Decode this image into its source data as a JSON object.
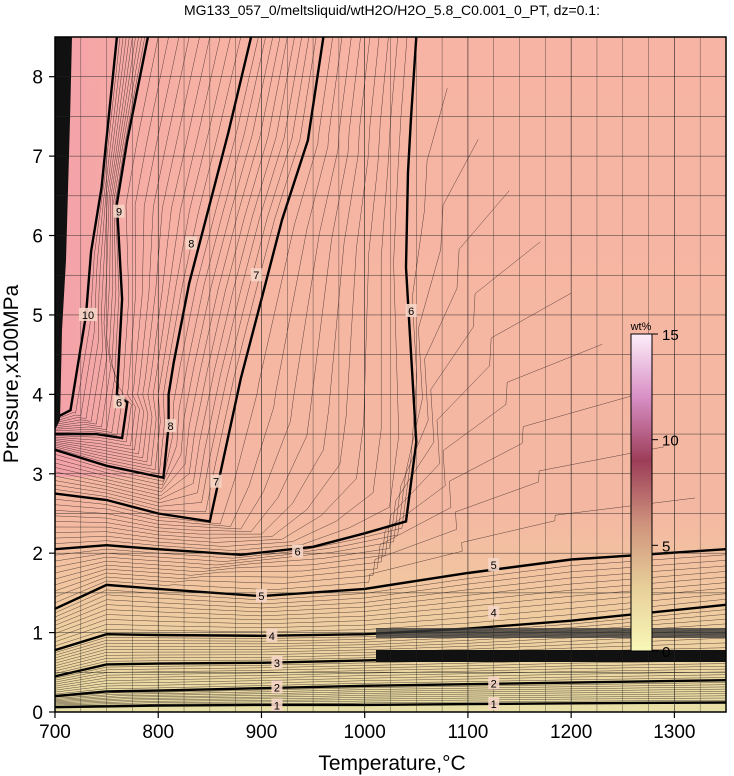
{
  "chart_data": {
    "type": "contour",
    "title": "MG133_057_0/meltsliquid/wtH2O/H2O_5.8_C0.001_0_PT, dz=0.1:",
    "xlabel": "Temperature,°C",
    "ylabel": "Pressure,x100MPa",
    "xlim": [
      700,
      1350
    ],
    "ylim": [
      0,
      8.5
    ],
    "x_ticks": [
      700,
      800,
      900,
      1000,
      1100,
      1200,
      1300
    ],
    "y_ticks": [
      0,
      1,
      2,
      3,
      4,
      5,
      6,
      7,
      8
    ],
    "grid": true,
    "colorbar": {
      "title": "wt%",
      "range": [
        0,
        15
      ],
      "ticks": [
        0,
        5,
        10,
        15
      ],
      "colors": [
        "#f6f4b6",
        "#e6c994",
        "#c98a79",
        "#9a3a57",
        "#d98fc6",
        "#fbe9f7"
      ]
    },
    "background_color": "#f7b5a1",
    "contours": [
      {
        "level": 1,
        "points": [
          [
            700,
            0.06
          ],
          [
            800,
            0.08
          ],
          [
            900,
            0.09
          ],
          [
            1000,
            0.09
          ],
          [
            1100,
            0.1
          ],
          [
            1200,
            0.11
          ],
          [
            1350,
            0.12
          ]
        ]
      },
      {
        "level": 2,
        "points": [
          [
            700,
            0.2
          ],
          [
            750,
            0.26
          ],
          [
            800,
            0.27
          ],
          [
            900,
            0.3
          ],
          [
            1000,
            0.33
          ],
          [
            1100,
            0.35
          ],
          [
            1200,
            0.37
          ],
          [
            1350,
            0.4
          ]
        ]
      },
      {
        "level": 3,
        "points": [
          [
            700,
            0.45
          ],
          [
            750,
            0.6
          ],
          [
            800,
            0.61
          ],
          [
            900,
            0.62
          ],
          [
            1000,
            0.65
          ],
          [
            1100,
            0.68
          ],
          [
            1200,
            0.72
          ],
          [
            1350,
            0.75
          ]
        ]
      },
      {
        "level": 4,
        "points": [
          [
            700,
            0.78
          ],
          [
            750,
            0.98
          ],
          [
            800,
            0.97
          ],
          [
            900,
            0.96
          ],
          [
            1000,
            0.98
          ],
          [
            1100,
            1.05
          ],
          [
            1200,
            1.15
          ],
          [
            1350,
            1.35
          ]
        ]
      },
      {
        "level": 5,
        "points": [
          [
            700,
            1.3
          ],
          [
            750,
            1.6
          ],
          [
            800,
            1.55
          ],
          [
            900,
            1.46
          ],
          [
            1000,
            1.55
          ],
          [
            1100,
            1.75
          ],
          [
            1200,
            1.92
          ],
          [
            1350,
            2.05
          ]
        ]
      },
      {
        "level": 6,
        "points": [
          [
            700,
            2.05
          ],
          [
            750,
            2.1
          ],
          [
            800,
            2.05
          ],
          [
            880,
            1.98
          ],
          [
            950,
            2.08
          ],
          [
            1000,
            2.25
          ],
          [
            1040,
            2.4
          ],
          [
            1050,
            3.4
          ],
          [
            1045,
            4.5
          ],
          [
            1040,
            5.6
          ],
          [
            1042,
            6.8
          ],
          [
            1045,
            7.5
          ],
          [
            1050,
            8.5
          ]
        ]
      },
      {
        "level": 7,
        "points": [
          [
            700,
            2.75
          ],
          [
            750,
            2.67
          ],
          [
            800,
            2.5
          ],
          [
            850,
            2.4
          ],
          [
            860,
            3.0
          ],
          [
            880,
            4.2
          ],
          [
            900,
            5.2
          ],
          [
            920,
            6.2
          ],
          [
            945,
            7.2
          ],
          [
            960,
            8.5
          ]
        ]
      },
      {
        "level": 8,
        "points": [
          [
            700,
            3.3
          ],
          [
            750,
            3.1
          ],
          [
            805,
            2.95
          ],
          [
            810,
            3.6
          ],
          [
            810,
            4.0
          ],
          [
            815,
            4.4
          ],
          [
            830,
            5.4
          ],
          [
            848,
            6.3
          ],
          [
            868,
            7.3
          ],
          [
            890,
            8.5
          ]
        ]
      },
      {
        "level": 9,
        "points": [
          [
            700,
            3.5
          ],
          [
            740,
            3.5
          ],
          [
            765,
            3.45
          ],
          [
            770,
            3.9
          ],
          [
            760,
            4.0
          ],
          [
            765,
            5.2
          ],
          [
            760,
            6.4
          ],
          [
            770,
            7.2
          ],
          [
            790,
            8.5
          ]
        ]
      },
      {
        "level": 10,
        "points": [
          [
            700,
            3.7
          ],
          [
            715,
            3.8
          ],
          [
            730,
            5.0
          ],
          [
            735,
            5.8
          ],
          [
            745,
            6.6
          ],
          [
            760,
            8.5
          ]
        ]
      }
    ],
    "contour_labels": [
      {
        "text": "1",
        "x": 915,
        "y": 0.08
      },
      {
        "text": "1",
        "x": 1125,
        "y": 0.1
      },
      {
        "text": "2",
        "x": 915,
        "y": 0.31
      },
      {
        "text": "2",
        "x": 1125,
        "y": 0.36
      },
      {
        "text": "3",
        "x": 915,
        "y": 0.62
      },
      {
        "text": "4",
        "x": 910,
        "y": 0.96
      },
      {
        "text": "4",
        "x": 1125,
        "y": 1.25
      },
      {
        "text": "5",
        "x": 1125,
        "y": 1.85
      },
      {
        "text": "5",
        "x": 900,
        "y": 1.46
      },
      {
        "text": "6",
        "x": 935,
        "y": 2.02
      },
      {
        "text": "6",
        "x": 1045,
        "y": 5.05
      },
      {
        "text": "7",
        "x": 856,
        "y": 2.9
      },
      {
        "text": "7",
        "x": 895,
        "y": 5.5
      },
      {
        "text": "8",
        "x": 812,
        "y": 3.6
      },
      {
        "text": "8",
        "x": 832,
        "y": 5.9
      },
      {
        "text": "9",
        "x": 762,
        "y": 6.3
      },
      {
        "text": "6",
        "x": 762,
        "y": 3.9
      },
      {
        "text": "10",
        "x": 732,
        "y": 5.0
      }
    ]
  }
}
